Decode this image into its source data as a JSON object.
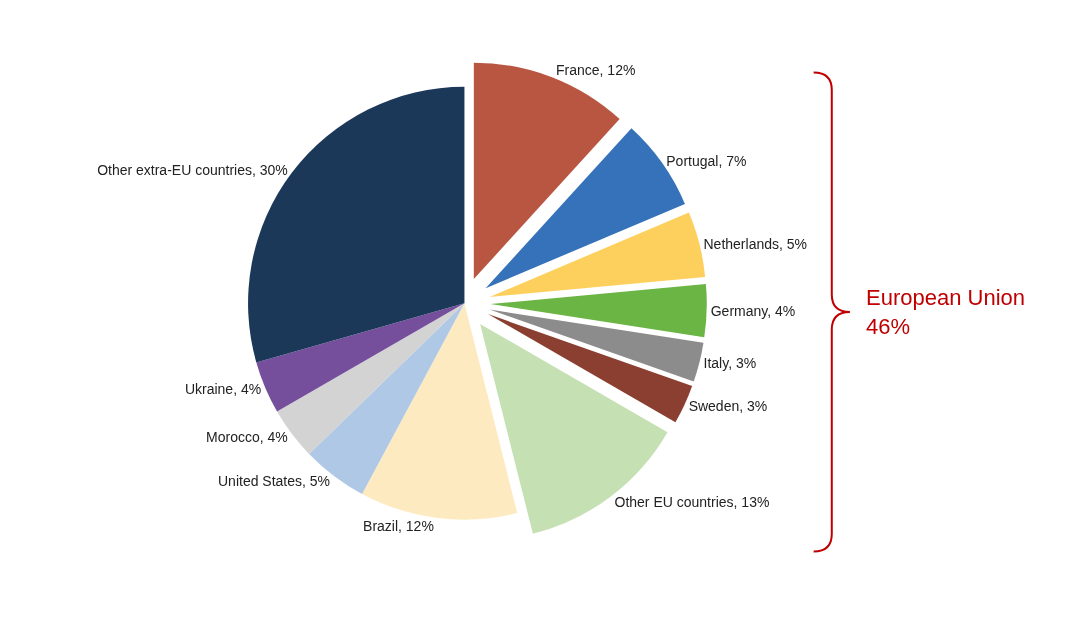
{
  "chart_data": {
    "type": "pie",
    "categories": [
      "France",
      "Portugal",
      "Netherlands",
      "Germany",
      "Italy",
      "Sweden",
      "Other EU countries",
      "Brazil",
      "United States",
      "Morocco",
      "Ukraine",
      "Other extra-EU countries"
    ],
    "values": [
      12,
      7,
      5,
      4,
      3,
      3,
      13,
      12,
      5,
      4,
      4,
      30
    ],
    "value_labels": [
      "12%",
      "7%",
      "5%",
      "4%",
      "3%",
      "3%",
      "13%",
      "12%",
      "5%",
      "4%",
      "4%",
      "30%"
    ],
    "colors": [
      "#b85642",
      "#3572b9",
      "#fdd05e",
      "#6bb544",
      "#8c8c8c",
      "#8b3f30",
      "#c5e1b3",
      "#feeac0",
      "#aec8e6",
      "#d3d3d3",
      "#754f9c",
      "#1c3859"
    ],
    "annotations": [
      "European Union\n46%"
    ],
    "legend": false
  }
}
